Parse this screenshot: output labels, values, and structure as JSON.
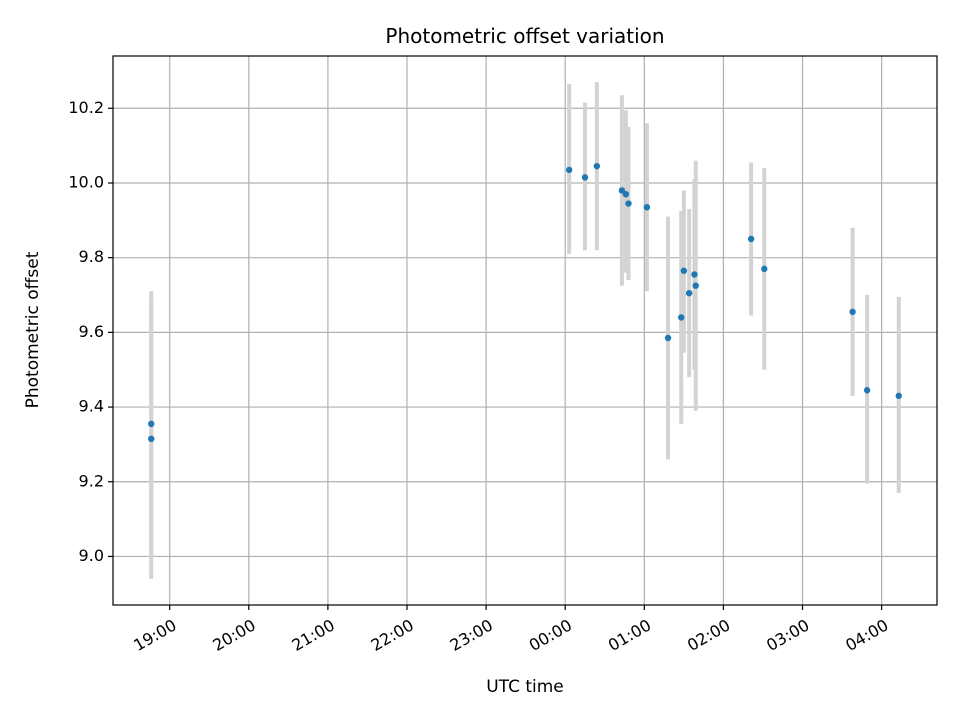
{
  "chart_data": {
    "type": "scatter",
    "title": "Photometric offset variation",
    "xlabel": "UTC time",
    "ylabel": "Photometric offset",
    "x_axis": "time",
    "xlim": [
      "18:17",
      "04:42"
    ],
    "ylim": [
      8.87,
      10.34
    ],
    "grid": true,
    "x_ticks": [
      "19:00",
      "20:00",
      "21:00",
      "22:00",
      "23:00",
      "00:00",
      "01:00",
      "02:00",
      "03:00",
      "04:00"
    ],
    "y_ticks": [
      9.0,
      9.2,
      9.4,
      9.6,
      9.8,
      10.0,
      10.2
    ],
    "y_tick_labels": [
      "9.0",
      "9.2",
      "9.4",
      "9.6",
      "9.8",
      "10.0",
      "10.2"
    ],
    "marker_color": "#1f77b4",
    "errorbar_color": "#d3d3d3",
    "points": [
      {
        "t": "18:46",
        "y": 9.355,
        "lo": 9.0,
        "hi": 9.71
      },
      {
        "t": "18:46",
        "y": 9.315,
        "lo": 8.94,
        "hi": 9.68
      },
      {
        "t": "00:03",
        "y": 10.035,
        "lo": 9.81,
        "hi": 10.265
      },
      {
        "t": "00:15",
        "y": 10.015,
        "lo": 9.82,
        "hi": 10.215
      },
      {
        "t": "00:24",
        "y": 10.045,
        "lo": 9.82,
        "hi": 10.27
      },
      {
        "t": "00:43",
        "y": 9.98,
        "lo": 9.725,
        "hi": 10.235
      },
      {
        "t": "00:46",
        "y": 9.97,
        "lo": 9.76,
        "hi": 10.195
      },
      {
        "t": "00:48",
        "y": 9.945,
        "lo": 9.74,
        "hi": 10.15
      },
      {
        "t": "01:02",
        "y": 9.935,
        "lo": 9.71,
        "hi": 10.16
      },
      {
        "t": "01:18",
        "y": 9.585,
        "lo": 9.26,
        "hi": 9.91
      },
      {
        "t": "01:28",
        "y": 9.64,
        "lo": 9.355,
        "hi": 9.925
      },
      {
        "t": "01:30",
        "y": 9.765,
        "lo": 9.545,
        "hi": 9.98
      },
      {
        "t": "01:34",
        "y": 9.705,
        "lo": 9.48,
        "hi": 9.93
      },
      {
        "t": "01:38",
        "y": 9.755,
        "lo": 9.5,
        "hi": 10.01
      },
      {
        "t": "01:39",
        "y": 9.725,
        "lo": 9.39,
        "hi": 10.06
      },
      {
        "t": "02:21",
        "y": 9.85,
        "lo": 9.645,
        "hi": 10.055
      },
      {
        "t": "02:31",
        "y": 9.77,
        "lo": 9.5,
        "hi": 10.04
      },
      {
        "t": "03:38",
        "y": 9.655,
        "lo": 9.43,
        "hi": 9.88
      },
      {
        "t": "03:49",
        "y": 9.445,
        "lo": 9.195,
        "hi": 9.7
      },
      {
        "t": "04:13",
        "y": 9.43,
        "lo": 9.17,
        "hi": 9.695
      }
    ]
  }
}
